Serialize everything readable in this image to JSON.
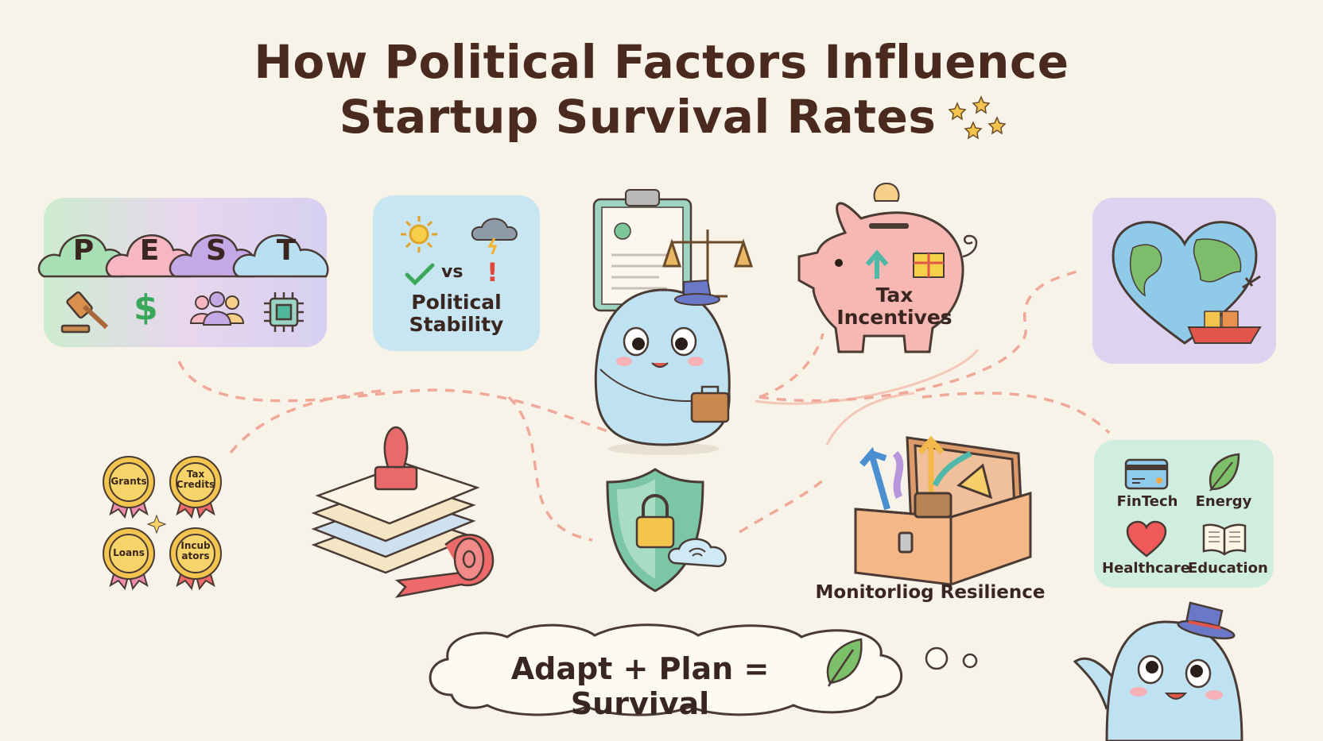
{
  "title": {
    "line1": "How Political Factors Influence",
    "line2": "Startup Survival Rates"
  },
  "pest": {
    "letters": [
      "P",
      "E",
      "S",
      "T"
    ],
    "icons": [
      "gavel-icon",
      "dollar-icon",
      "people-icon",
      "chip-icon"
    ]
  },
  "stability": {
    "vs": "vs",
    "label_line1": "Political",
    "label_line2": "Stability"
  },
  "piggy": {
    "label_line1": "Tax",
    "label_line2": "Incentives"
  },
  "badges": [
    {
      "line1": "Grants",
      "line2": ""
    },
    {
      "line1": "Tax",
      "line2": "Credits"
    },
    {
      "line1": "Loans",
      "line2": ""
    },
    {
      "line1": "Incub",
      "line2": "ators"
    }
  ],
  "toolbox": {
    "label": "Monitorliog Resilience"
  },
  "sectors": [
    {
      "label": "FinTech",
      "icon": "credit-card-icon"
    },
    {
      "label": "Energy",
      "icon": "leaf-icon"
    },
    {
      "label": "Healthcare",
      "icon": "heart-icon"
    },
    {
      "label": "Education",
      "icon": "book-icon"
    }
  ],
  "bubble": {
    "text": "Adapt + Plan = Survival"
  },
  "colors": {
    "background": "#f8f3e8",
    "title": "#4a2a1f",
    "dashed_path": "#f0a898",
    "mascot": "#bfe2f2",
    "badge": "#f3c44e"
  }
}
